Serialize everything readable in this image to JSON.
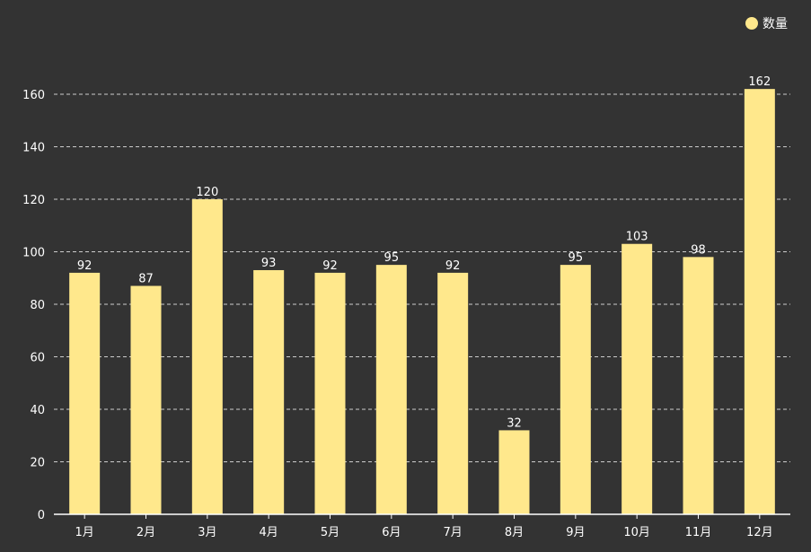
{
  "chart_data": {
    "type": "bar",
    "categories": [
      "1月",
      "2月",
      "3月",
      "4月",
      "5月",
      "6月",
      "7月",
      "8月",
      "9月",
      "10月",
      "11月",
      "12月"
    ],
    "series": [
      {
        "name": "数量",
        "values": [
          92,
          87,
          120,
          93,
          92,
          95,
          92,
          32,
          95,
          103,
          98,
          162
        ]
      }
    ],
    "title": "",
    "xlabel": "",
    "ylabel": "",
    "ylim": [
      0,
      160
    ],
    "yticks": [
      0,
      20,
      40,
      60,
      80,
      100,
      120,
      140,
      160
    ],
    "grid": true,
    "legend_position": "top-right",
    "bar_color": "#ffe88c",
    "background_color": "#333333",
    "grid_color": "#cccccc",
    "text_color": "#ffffff"
  }
}
